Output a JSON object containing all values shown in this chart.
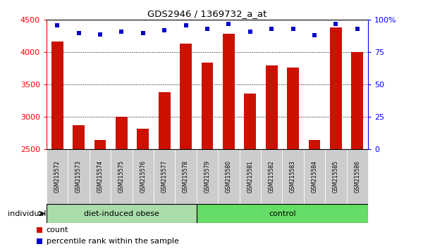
{
  "title": "GDS2946 / 1369732_a_at",
  "categories": [
    "GSM215572",
    "GSM215573",
    "GSM215574",
    "GSM215575",
    "GSM215576",
    "GSM215577",
    "GSM215578",
    "GSM215579",
    "GSM215580",
    "GSM215581",
    "GSM215582",
    "GSM215583",
    "GSM215584",
    "GSM215585",
    "GSM215586"
  ],
  "counts": [
    4170,
    2870,
    2650,
    3000,
    2820,
    3380,
    4130,
    3840,
    4290,
    3360,
    3800,
    3760,
    2650,
    4380,
    4000
  ],
  "percentiles": [
    96,
    90,
    89,
    91,
    90,
    92,
    96,
    93,
    97,
    91,
    93,
    93,
    88,
    97,
    93
  ],
  "bar_color": "#cc1100",
  "dot_color": "#0000cc",
  "ymin": 2500,
  "ymax": 4500,
  "yticks": [
    2500,
    3000,
    3500,
    4000,
    4500
  ],
  "right_yticks": [
    0,
    25,
    50,
    75,
    100
  ],
  "right_yticklabels": [
    "0",
    "25",
    "50",
    "75",
    "100%"
  ],
  "grid_lines": [
    3000,
    3500,
    4000
  ],
  "group1_label": "diet-induced obese",
  "group1_count": 7,
  "group2_label": "control",
  "group2_count": 8,
  "individual_label": "individual",
  "legend_count": "count",
  "legend_percentile": "percentile rank within the sample",
  "group1_color": "#aaddaa",
  "group2_color": "#66dd66",
  "tick_bg_color": "#cccccc"
}
